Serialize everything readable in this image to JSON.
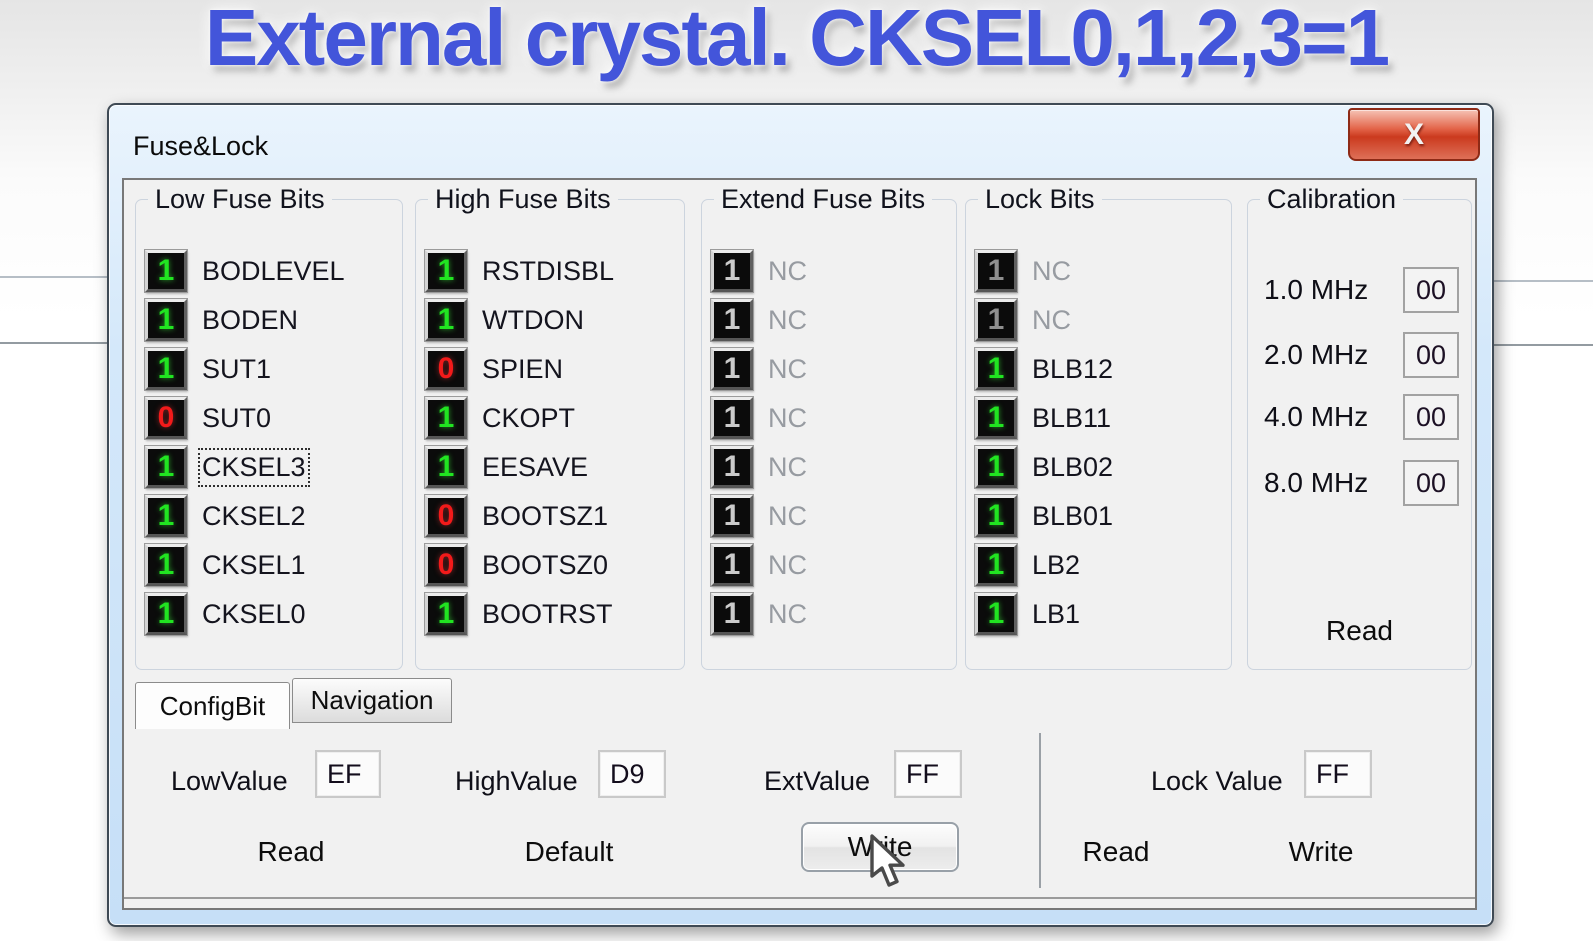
{
  "headline": "External crystal. CKSEL0,1,2,3=1",
  "window": {
    "title": "Fuse&Lock",
    "close_glyph": "X",
    "groups": [
      {
        "title": "Low Fuse Bits",
        "bits": [
          {
            "value": "1",
            "state": "on",
            "label": "BODLEVEL"
          },
          {
            "value": "1",
            "state": "on",
            "label": "BODEN"
          },
          {
            "value": "1",
            "state": "on",
            "label": "SUT1"
          },
          {
            "value": "0",
            "state": "off",
            "label": "SUT0"
          },
          {
            "value": "1",
            "state": "on",
            "label": "CKSEL3",
            "focused": true
          },
          {
            "value": "1",
            "state": "on",
            "label": "CKSEL2"
          },
          {
            "value": "1",
            "state": "on",
            "label": "CKSEL1"
          },
          {
            "value": "1",
            "state": "on",
            "label": "CKSEL0"
          }
        ]
      },
      {
        "title": "High Fuse Bits",
        "bits": [
          {
            "value": "1",
            "state": "on",
            "label": "RSTDISBL"
          },
          {
            "value": "1",
            "state": "on",
            "label": "WTDON"
          },
          {
            "value": "0",
            "state": "off",
            "label": "SPIEN"
          },
          {
            "value": "1",
            "state": "on",
            "label": "CKOPT"
          },
          {
            "value": "1",
            "state": "on",
            "label": "EESAVE"
          },
          {
            "value": "0",
            "state": "off",
            "label": "BOOTSZ1"
          },
          {
            "value": "0",
            "state": "off",
            "label": "BOOTSZ0"
          },
          {
            "value": "1",
            "state": "on",
            "label": "BOOTRST"
          }
        ]
      },
      {
        "title": "Extend Fuse Bits",
        "bits": [
          {
            "value": "1",
            "state": "nc",
            "label": "NC",
            "muted": true
          },
          {
            "value": "1",
            "state": "nc",
            "label": "NC",
            "muted": true
          },
          {
            "value": "1",
            "state": "nc",
            "label": "NC",
            "muted": true
          },
          {
            "value": "1",
            "state": "nc",
            "label": "NC",
            "muted": true
          },
          {
            "value": "1",
            "state": "nc",
            "label": "NC",
            "muted": true
          },
          {
            "value": "1",
            "state": "nc",
            "label": "NC",
            "muted": true
          },
          {
            "value": "1",
            "state": "nc",
            "label": "NC",
            "muted": true
          },
          {
            "value": "1",
            "state": "nc",
            "label": "NC",
            "muted": true
          }
        ]
      },
      {
        "title": "Lock Bits",
        "bits": [
          {
            "value": "1",
            "state": "nc-dim",
            "label": "NC",
            "muted": true
          },
          {
            "value": "1",
            "state": "nc-dim",
            "label": "NC",
            "muted": true
          },
          {
            "value": "1",
            "state": "on",
            "label": "BLB12"
          },
          {
            "value": "1",
            "state": "on",
            "label": "BLB11"
          },
          {
            "value": "1",
            "state": "on",
            "label": "BLB02"
          },
          {
            "value": "1",
            "state": "on",
            "label": "BLB01"
          },
          {
            "value": "1",
            "state": "on",
            "label": "LB2"
          },
          {
            "value": "1",
            "state": "on",
            "label": "LB1"
          }
        ]
      }
    ],
    "calibration": {
      "title": "Calibration",
      "rows": [
        {
          "freq": "1.0 MHz",
          "value": "00"
        },
        {
          "freq": "2.0 MHz",
          "value": "00"
        },
        {
          "freq": "4.0 MHz",
          "value": "00"
        },
        {
          "freq": "8.0 MHz",
          "value": "00"
        }
      ],
      "read_label": "Read"
    },
    "tabs": [
      {
        "label": "ConfigBit",
        "active": true
      },
      {
        "label": "Navigation",
        "active": false
      }
    ],
    "config": {
      "fields": [
        {
          "label": "LowValue",
          "value": "EF"
        },
        {
          "label": "HighValue",
          "value": "D9"
        },
        {
          "label": "ExtValue",
          "value": "FF"
        },
        {
          "label": "Lock Value",
          "value": "FF"
        }
      ],
      "buttons": {
        "read": "Read",
        "default": "Default",
        "write": "Write",
        "lock_read": "Read",
        "lock_write": "Write"
      }
    }
  },
  "colors": {
    "bit_on": "#21e421",
    "bit_off": "#f21a1a",
    "bit_nc": "#cbcbcb",
    "headline_blue": "#4355da",
    "close_red": "#cb3a1e"
  }
}
